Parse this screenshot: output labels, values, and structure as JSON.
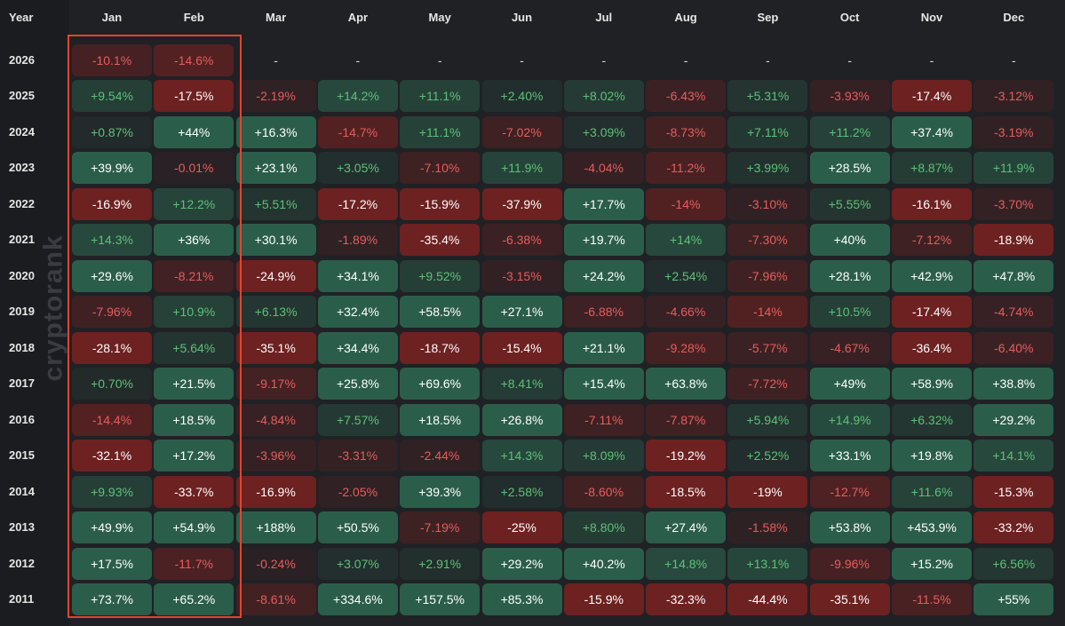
{
  "header": {
    "year_label": "Year"
  },
  "watermark": "cryptorank",
  "colors": {
    "positive": "#2b5e4a",
    "negative": "#6e2121",
    "positive_text": "#5cc276",
    "negative_text": "#e85c5c",
    "highlight": "#e0452f",
    "background": "#202125"
  },
  "chart_data": {
    "type": "heatmap",
    "months": [
      "Jan",
      "Feb",
      "Mar",
      "Apr",
      "May",
      "Jun",
      "Jul",
      "Aug",
      "Sep",
      "Oct",
      "Nov",
      "Dec"
    ],
    "years": [
      "2026",
      "2025",
      "2024",
      "2023",
      "2022",
      "2021",
      "2020",
      "2019",
      "2018",
      "2017",
      "2016",
      "2015",
      "2014",
      "2013",
      "2012",
      "2011"
    ],
    "highlighted_columns": [
      "Jan",
      "Feb"
    ],
    "values": [
      [
        "-10.1%",
        "-14.6%",
        "-",
        "-",
        "-",
        "-",
        "-",
        "-",
        "-",
        "-",
        "-",
        "-"
      ],
      [
        "+9.54%",
        "-17.5%",
        "-2.19%",
        "+14.2%",
        "+11.1%",
        "+2.40%",
        "+8.02%",
        "-6.43%",
        "+5.31%",
        "-3.93%",
        "-17.4%",
        "-3.12%"
      ],
      [
        "+0.87%",
        "+44%",
        "+16.3%",
        "-14.7%",
        "+11.1%",
        "-7.02%",
        "+3.09%",
        "-8.73%",
        "+7.11%",
        "+11.2%",
        "+37.4%",
        "-3.19%"
      ],
      [
        "+39.9%",
        "-0.01%",
        "+23.1%",
        "+3.05%",
        "-7.10%",
        "+11.9%",
        "-4.04%",
        "-11.2%",
        "+3.99%",
        "+28.5%",
        "+8.87%",
        "+11.9%"
      ],
      [
        "-16.9%",
        "+12.2%",
        "+5.51%",
        "-17.2%",
        "-15.9%",
        "-37.9%",
        "+17.7%",
        "-14%",
        "-3.10%",
        "+5.55%",
        "-16.1%",
        "-3.70%"
      ],
      [
        "+14.3%",
        "+36%",
        "+30.1%",
        "-1.89%",
        "-35.4%",
        "-6.38%",
        "+19.7%",
        "+14%",
        "-7.30%",
        "+40%",
        "-7.12%",
        "-18.9%"
      ],
      [
        "+29.6%",
        "-8.21%",
        "-24.9%",
        "+34.1%",
        "+9.52%",
        "-3.15%",
        "+24.2%",
        "+2.54%",
        "-7.96%",
        "+28.1%",
        "+42.9%",
        "+47.8%"
      ],
      [
        "-7.96%",
        "+10.9%",
        "+6.13%",
        "+32.4%",
        "+58.5%",
        "+27.1%",
        "-6.88%",
        "-4.66%",
        "-14%",
        "+10.5%",
        "-17.4%",
        "-4.74%"
      ],
      [
        "-28.1%",
        "+5.64%",
        "-35.1%",
        "+34.4%",
        "-18.7%",
        "-15.4%",
        "+21.1%",
        "-9.28%",
        "-5.77%",
        "-4.67%",
        "-36.4%",
        "-6.40%"
      ],
      [
        "+0.70%",
        "+21.5%",
        "-9.17%",
        "+25.8%",
        "+69.6%",
        "+8.41%",
        "+15.4%",
        "+63.8%",
        "-7.72%",
        "+49%",
        "+58.9%",
        "+38.8%"
      ],
      [
        "-14.4%",
        "+18.5%",
        "-4.84%",
        "+7.57%",
        "+18.5%",
        "+26.8%",
        "-7.11%",
        "-7.87%",
        "+5.94%",
        "+14.9%",
        "+6.32%",
        "+29.2%"
      ],
      [
        "-32.1%",
        "+17.2%",
        "-3.96%",
        "-3.31%",
        "-2.44%",
        "+14.3%",
        "+8.09%",
        "-19.2%",
        "+2.52%",
        "+33.1%",
        "+19.8%",
        "+14.1%"
      ],
      [
        "+9.93%",
        "-33.7%",
        "-16.9%",
        "-2.05%",
        "+39.3%",
        "+2.58%",
        "-8.60%",
        "-18.5%",
        "-19%",
        "-12.7%",
        "+11.6%",
        "-15.3%"
      ],
      [
        "+49.9%",
        "+54.9%",
        "+188%",
        "+50.5%",
        "-7.19%",
        "-25%",
        "+8.80%",
        "+27.4%",
        "-1.58%",
        "+53.8%",
        "+453.9%",
        "-33.2%"
      ],
      [
        "+17.5%",
        "-11.7%",
        "-0.24%",
        "+3.07%",
        "+2.91%",
        "+29.2%",
        "+40.2%",
        "+14.8%",
        "+13.1%",
        "-9.96%",
        "+15.2%",
        "+6.56%"
      ],
      [
        "+73.7%",
        "+65.2%",
        "-8.61%",
        "+334.6%",
        "+157.5%",
        "+85.3%",
        "-15.9%",
        "-32.3%",
        "-44.4%",
        "-35.1%",
        "-11.5%",
        "+55%"
      ]
    ]
  }
}
